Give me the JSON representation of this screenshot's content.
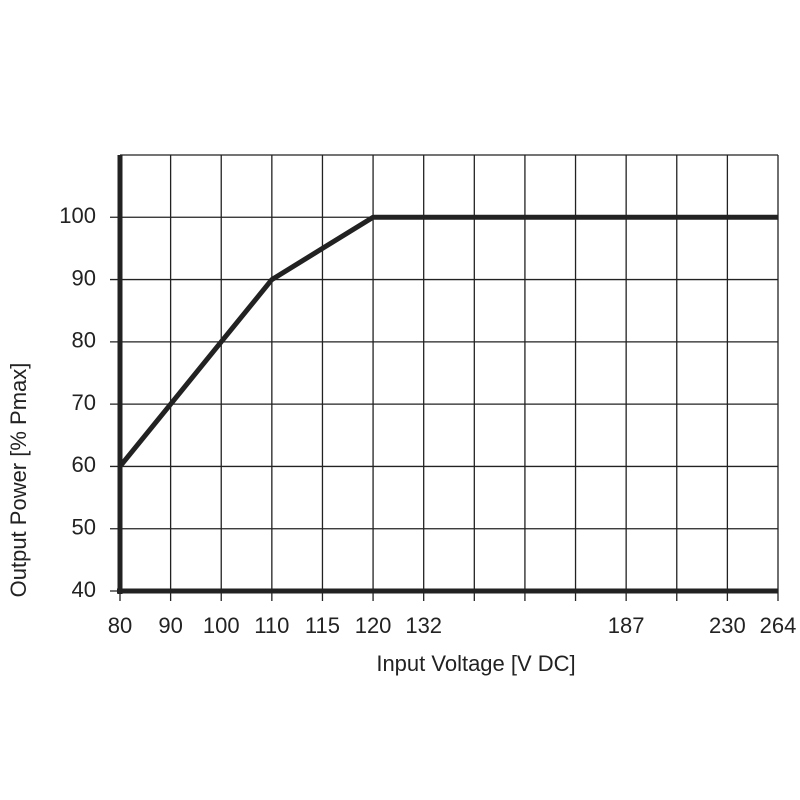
{
  "chart_data": {
    "type": "line",
    "x_label": "Input Voltage [V DC]",
    "y_label": "Output Power [% Pmax]",
    "categories": [
      "80",
      "90",
      "100",
      "110",
      "115",
      "120",
      "132",
      null,
      null,
      null,
      "187",
      null,
      "230",
      "264"
    ],
    "series": [
      {
        "name": "Output Power",
        "color": "#222222",
        "values": [
          60,
          70,
          80,
          90,
          95,
          100,
          100,
          100,
          100,
          100,
          100,
          100,
          100,
          100
        ]
      }
    ],
    "ylim": [
      40,
      110
    ],
    "yticks": [
      40,
      50,
      60,
      70,
      80,
      90,
      100
    ],
    "grid": true
  }
}
